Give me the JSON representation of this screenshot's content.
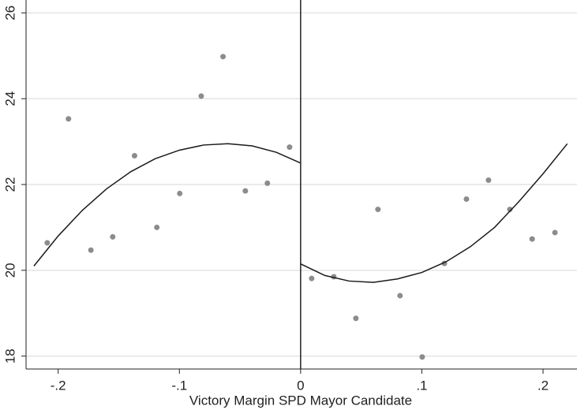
{
  "chart_data": {
    "type": "scatter",
    "xlabel": "Victory Margin SPD Mayor Candidate",
    "xlim": [
      -0.2265,
      0.228
    ],
    "ylim": [
      17.7,
      26.3
    ],
    "xticks": [
      {
        "value": -0.2,
        "label": "-.2"
      },
      {
        "value": -0.1,
        "label": "-.1"
      },
      {
        "value": 0,
        "label": "0"
      },
      {
        "value": 0.1,
        "label": ".1"
      },
      {
        "value": 0.2,
        "label": ".2"
      }
    ],
    "yticks": [
      18,
      20,
      22,
      24,
      26
    ],
    "grid": true,
    "xline": 0,
    "series": [
      {
        "color": "#8c8c8c",
        "x": [
          -0.209,
          -0.1915,
          -0.173,
          -0.155,
          -0.137,
          -0.1186,
          -0.0997,
          -0.082,
          -0.064,
          -0.0456,
          -0.0274,
          -0.0091,
          0.0091,
          0.0274,
          0.0456,
          0.0638,
          0.082,
          0.1003,
          0.1186,
          0.1368,
          0.155,
          0.1726,
          0.191,
          0.2098
        ],
        "values": [
          20.64,
          23.53,
          20.47,
          20.78,
          22.67,
          21.0,
          21.79,
          24.06,
          24.98,
          21.85,
          22.03,
          22.87,
          19.81,
          19.85,
          18.88,
          21.42,
          19.41,
          17.98,
          20.16,
          21.66,
          22.1,
          21.42,
          20.73,
          20.88
        ]
      }
    ],
    "fit_lines": [
      {
        "color": "#1a1a1a",
        "x": [
          -0.22,
          -0.2,
          -0.18,
          -0.16,
          -0.14,
          -0.12,
          -0.1,
          -0.08,
          -0.06,
          -0.04,
          -0.02,
          0
        ],
        "values": [
          20.1,
          20.8,
          21.4,
          21.9,
          22.3,
          22.6,
          22.8,
          22.92,
          22.95,
          22.9,
          22.75,
          22.5
        ]
      },
      {
        "color": "#1a1a1a",
        "x": [
          0,
          0.02,
          0.04,
          0.06,
          0.08,
          0.1,
          0.12,
          0.14,
          0.16,
          0.18,
          0.2,
          0.22
        ],
        "values": [
          20.15,
          19.88,
          19.75,
          19.72,
          19.8,
          19.95,
          20.2,
          20.55,
          21.0,
          21.6,
          22.25,
          22.95
        ]
      }
    ]
  }
}
